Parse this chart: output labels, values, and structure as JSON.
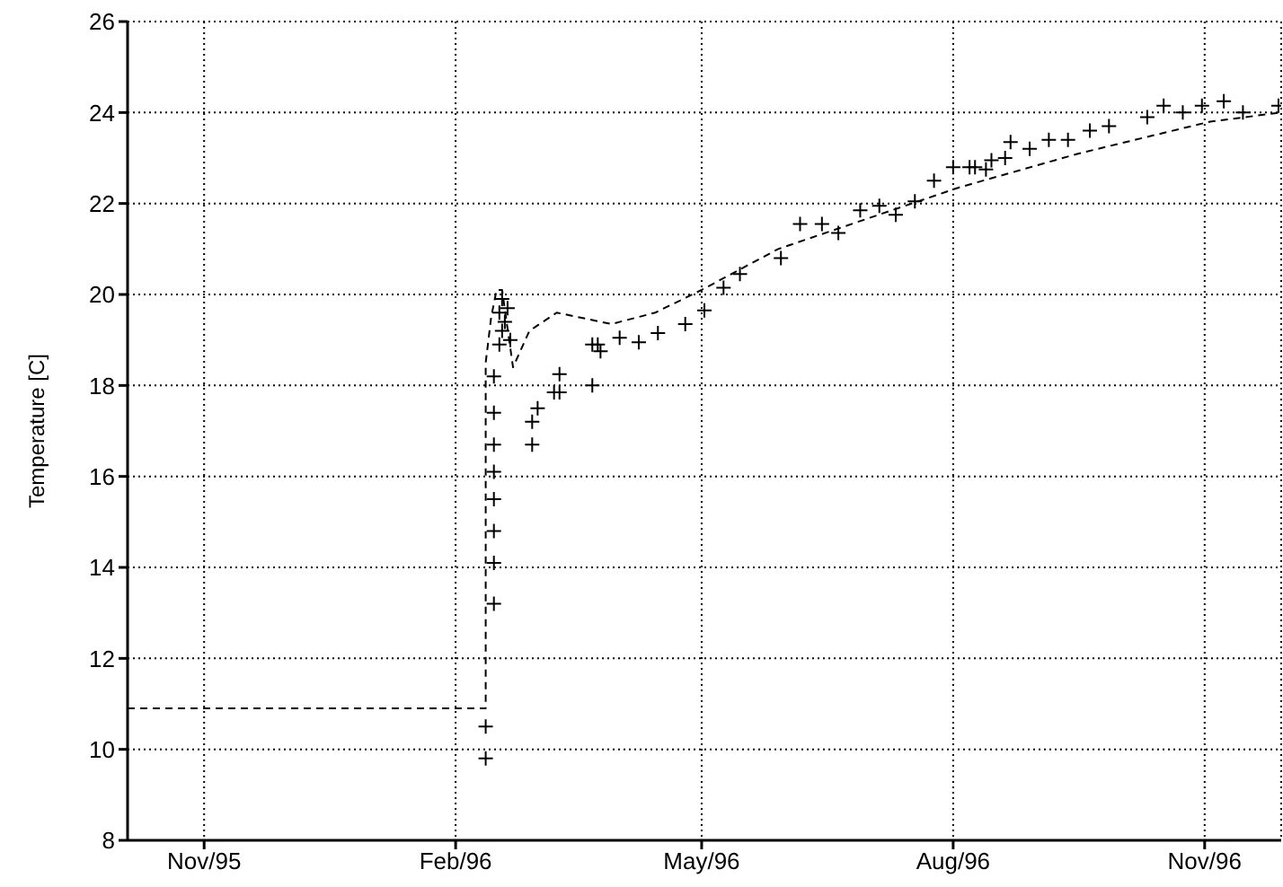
{
  "chart_data": {
    "type": "scatter",
    "ylabel": "Temperature [C]",
    "xlim": [
      "1995-10-04",
      "1996-11-29"
    ],
    "xticks": [
      {
        "value": "1995-11-01",
        "label": "Nov/95"
      },
      {
        "value": "1996-02-01",
        "label": "Feb/96"
      },
      {
        "value": "1996-05-01",
        "label": "May/96"
      },
      {
        "value": "1996-08-01",
        "label": "Aug/96"
      },
      {
        "value": "1996-11-01",
        "label": "Nov/96"
      }
    ],
    "ylim": [
      8,
      26
    ],
    "yticks": [
      8,
      10,
      12,
      14,
      16,
      18,
      20,
      22,
      24,
      26
    ],
    "grid": true,
    "legend": false,
    "series": [
      {
        "type": "line",
        "color": "#000000",
        "line_style": "dashed",
        "marker": "none",
        "x": [
          "1995-10-04",
          "1996-02-12",
          "1996-02-12",
          "1996-02-14",
          "1996-02-16",
          "1996-02-18",
          "1996-02-22",
          "1996-02-28",
          "1996-03-09",
          "1996-03-29",
          "1996-04-14",
          "1996-05-01",
          "1996-05-29",
          "1996-07-12",
          "1996-08-03",
          "1996-09-16",
          "1996-11-03",
          "1996-11-29"
        ],
        "values": [
          10.9,
          10.9,
          18.5,
          19.5,
          20.1,
          20.1,
          18.4,
          19.2,
          19.6,
          19.35,
          19.6,
          20.1,
          21.0,
          21.9,
          22.35,
          23.1,
          23.8,
          24.0
        ]
      },
      {
        "color": "#000000",
        "marker": "cross",
        "x": [
          "1996-02-12",
          "1996-02-12",
          "1996-02-15",
          "1996-02-15",
          "1996-02-15",
          "1996-02-15",
          "1996-02-15",
          "1996-02-15",
          "1996-02-15",
          "1996-02-15",
          "1996-02-17",
          "1996-02-17",
          "1996-02-18",
          "1996-02-18",
          "1996-02-19",
          "1996-02-20",
          "1996-02-21",
          "1996-02-29",
          "1996-02-29",
          "1996-03-02",
          "1996-03-08",
          "1996-03-10",
          "1996-03-10",
          "1996-03-22",
          "1996-03-22",
          "1996-03-24",
          "1996-03-25",
          "1996-04-01",
          "1996-04-08",
          "1996-04-15",
          "1996-04-25",
          "1996-05-02",
          "1996-05-09",
          "1996-05-15",
          "1996-05-30",
          "1996-06-06",
          "1996-06-14",
          "1996-06-20",
          "1996-06-28",
          "1996-07-05",
          "1996-07-11",
          "1996-07-18",
          "1996-07-25",
          "1996-08-01",
          "1996-08-07",
          "1996-08-09",
          "1996-08-13",
          "1996-08-15",
          "1996-08-20",
          "1996-08-22",
          "1996-08-29",
          "1996-09-05",
          "1996-09-12",
          "1996-09-20",
          "1996-09-27",
          "1996-10-11",
          "1996-10-17",
          "1996-10-24",
          "1996-10-31",
          "1996-11-08",
          "1996-11-15",
          "1996-11-28"
        ],
        "values": [
          9.8,
          10.5,
          13.2,
          14.1,
          14.8,
          15.5,
          16.1,
          16.7,
          17.4,
          18.2,
          18.9,
          19.6,
          19.2,
          19.9,
          19.4,
          19.7,
          19.0,
          16.7,
          17.2,
          17.5,
          17.85,
          17.85,
          18.25,
          18.0,
          18.9,
          18.9,
          18.75,
          19.05,
          18.95,
          19.15,
          19.35,
          19.65,
          20.15,
          20.45,
          20.8,
          21.55,
          21.55,
          21.35,
          21.85,
          21.95,
          21.75,
          22.05,
          22.5,
          22.8,
          22.8,
          22.8,
          22.75,
          22.95,
          23.0,
          23.35,
          23.2,
          23.4,
          23.4,
          23.6,
          23.7,
          23.9,
          24.15,
          24.0,
          24.15,
          24.25,
          24.0,
          24.15
        ]
      }
    ]
  }
}
